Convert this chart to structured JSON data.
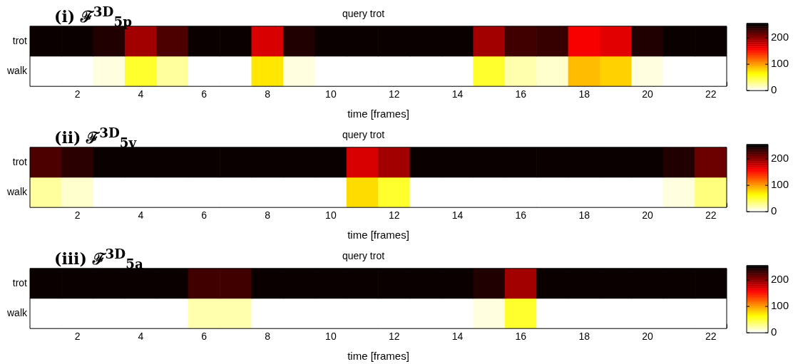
{
  "chart_data": [
    {
      "type": "heatmap",
      "title": "query trot",
      "subtitle": "(i) ℱ$^{3D}$$_{5p}$",
      "xlabel": "time [frames]",
      "categories": [
        null,
        "2",
        null,
        "4",
        null,
        "6",
        null,
        "8",
        null,
        "10",
        null,
        "12",
        null,
        "14",
        null,
        "16",
        null,
        "18",
        null,
        "20",
        null,
        "22"
      ],
      "y_categories": [
        "trot",
        "walk"
      ],
      "cells": [
        [
          250,
          250,
          242,
          195,
          225,
          250,
          250,
          175,
          240,
          250,
          250,
          250,
          250,
          250,
          195,
          230,
          235,
          160,
          168,
          240,
          250,
          250
        ],
        [
          0,
          0,
          8,
          55,
          25,
          0,
          0,
          75,
          10,
          0,
          0,
          0,
          0,
          0,
          55,
          20,
          15,
          90,
          82,
          10,
          0,
          0
        ]
      ],
      "clim": [
        0,
        255
      ],
      "cticks": [
        0,
        100,
        200
      ]
    },
    {
      "type": "heatmap",
      "title": "query trot",
      "subtitle": "(ii) ℱ$^{3D}$$_{5v}$",
      "xlabel": "time [frames]",
      "categories": [
        null,
        "2",
        null,
        "4",
        null,
        "6",
        null,
        "8",
        null,
        "10",
        null,
        "12",
        null,
        "14",
        null,
        "16",
        null,
        "18",
        null,
        "20",
        null,
        "22"
      ],
      "y_categories": [
        "trot",
        "walk"
      ],
      "cells": [
        [
          225,
          238,
          250,
          250,
          250,
          250,
          250,
          250,
          250,
          250,
          172,
          195,
          250,
          250,
          250,
          250,
          250,
          250,
          250,
          250,
          242,
          215
        ],
        [
          25,
          12,
          0,
          0,
          0,
          0,
          0,
          0,
          0,
          0,
          78,
          55,
          0,
          0,
          0,
          0,
          0,
          0,
          0,
          0,
          8,
          35
        ]
      ],
      "clim": [
        0,
        255
      ],
      "cticks": [
        0,
        100,
        200
      ]
    },
    {
      "type": "heatmap",
      "title": "query trot",
      "subtitle": "(iii) ℱ$^{3D}$$_{5a}$",
      "xlabel": "time [frames]",
      "categories": [
        null,
        "2",
        null,
        "4",
        null,
        "6",
        null,
        "8",
        null,
        "10",
        null,
        "12",
        null,
        "14",
        null,
        "16",
        null,
        "18",
        null,
        "20",
        null,
        "22"
      ],
      "y_categories": [
        "trot",
        "walk"
      ],
      "cells": [
        [
          250,
          250,
          250,
          250,
          250,
          228,
          230,
          250,
          250,
          250,
          250,
          250,
          250,
          250,
          242,
          195,
          250,
          250,
          250,
          250,
          250,
          250
        ],
        [
          0,
          0,
          0,
          0,
          0,
          22,
          20,
          0,
          0,
          0,
          0,
          0,
          0,
          0,
          8,
          55,
          0,
          0,
          0,
          0,
          0,
          0
        ]
      ],
      "clim": [
        0,
        255
      ],
      "cticks": [
        0,
        100,
        200
      ]
    }
  ]
}
